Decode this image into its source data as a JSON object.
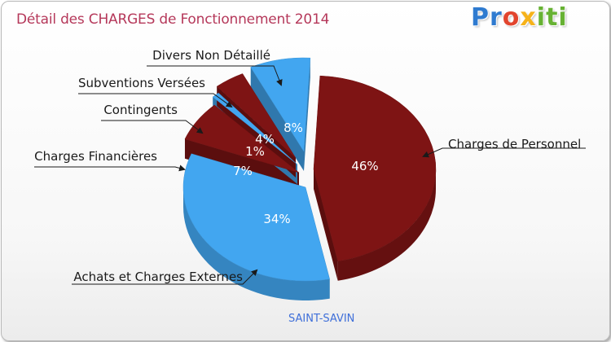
{
  "chart_data": {
    "type": "pie",
    "title": "Détail des CHARGES de Fonctionnement 2014",
    "subtitle": "SAINT-SAVIN",
    "slices": [
      {
        "name": "Charges de Personnel",
        "value": 46,
        "label": "46%",
        "color": "#7e1414"
      },
      {
        "name": "Achats et Charges Externes",
        "value": 34,
        "label": "34%",
        "color": "#42a6f0"
      },
      {
        "name": "Charges Financières",
        "value": 7,
        "label": "7%",
        "color": "#7e1414"
      },
      {
        "name": "Contingents",
        "value": 1,
        "label": "1%",
        "color": "#42a6f0"
      },
      {
        "name": "Subventions Versées",
        "value": 4,
        "label": "4%",
        "color": "#7e1414"
      },
      {
        "name": "Divers Non Détaillé",
        "value": 8,
        "label": "8%",
        "color": "#42a6f0"
      }
    ]
  },
  "logo": {
    "p1": "Pr",
    "p2": "o",
    "p3": "x",
    "p4": "iti"
  }
}
